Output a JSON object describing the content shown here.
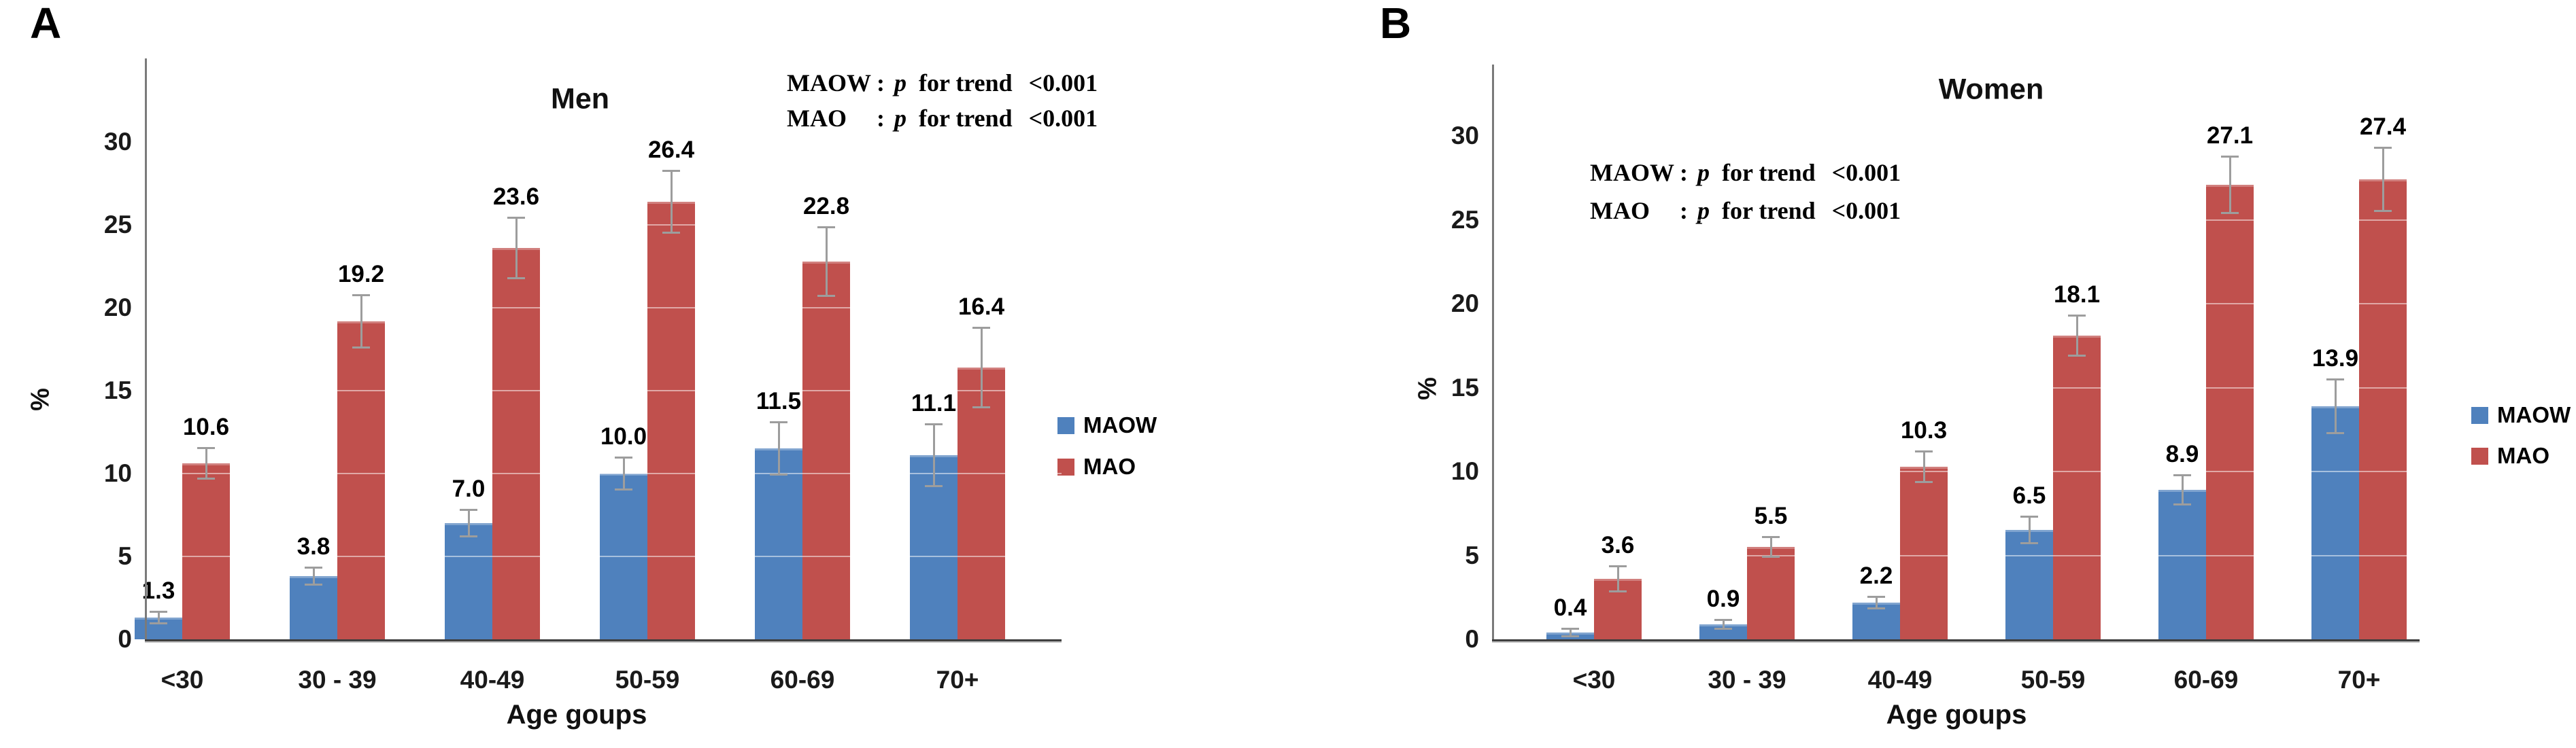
{
  "figure": {
    "background": "#ffffff",
    "error_bar_color": "#9d9d9d",
    "axis_color": "#3f3f3f"
  },
  "chart_data": [
    {
      "type": "bar",
      "panel_label": "A",
      "title": "Men",
      "ylabel": "%",
      "xlabel": "Age goups",
      "ylim": [
        0,
        35
      ],
      "yticks": [
        "0",
        "5",
        "10",
        "15",
        "20",
        "25",
        "30"
      ],
      "grid": "faint white gridlines every 5 over bars",
      "legend_position": "right",
      "categories": [
        "<30",
        "30 - 39",
        "40-49",
        "50-59",
        "60-69",
        "70+"
      ],
      "annotation": [
        {
          "name": "MAOW",
          "colon": ":",
          "p": "p",
          "text": "for trend",
          "value": "<0.001"
        },
        {
          "name": "MAO",
          "colon": ":",
          "p": "p",
          "text": "for trend",
          "value": "<0.001"
        }
      ],
      "series": [
        {
          "name": "MAOW",
          "color": "#4f81bd",
          "values": [
            1.3,
            3.8,
            7.0,
            10.0,
            11.5,
            11.1
          ],
          "labels": [
            "1.3",
            "3.8",
            "7.0",
            "10.0",
            "11.5",
            "11.1"
          ],
          "errors": [
            0.35,
            0.55,
            0.8,
            1.0,
            1.6,
            1.9
          ]
        },
        {
          "name": "MAO",
          "color": "#c0504d",
          "values": [
            10.6,
            19.2,
            23.6,
            26.4,
            22.8,
            16.4
          ],
          "labels": [
            "10.6",
            "19.2",
            "23.6",
            "26.4",
            "22.8",
            "16.4"
          ],
          "errors": [
            0.95,
            1.6,
            1.85,
            1.9,
            2.1,
            2.4
          ]
        }
      ]
    },
    {
      "type": "bar",
      "panel_label": "B",
      "title": "Women",
      "ylabel": "%",
      "xlabel": "Age goups",
      "ylim": [
        0,
        34
      ],
      "yticks": [
        "0",
        "5",
        "10",
        "15",
        "20",
        "25",
        "30"
      ],
      "grid": "faint white gridlines every 5 over bars",
      "legend_position": "right",
      "categories": [
        "<30",
        "30 - 39",
        "40-49",
        "50-59",
        "60-69",
        "70+"
      ],
      "annotation": [
        {
          "name": "MAOW",
          "colon": ":",
          "p": "p",
          "text": "for trend",
          "value": "<0.001"
        },
        {
          "name": "MAO",
          "colon": ":",
          "p": "p",
          "text": "for trend",
          "value": "<0.001"
        }
      ],
      "series": [
        {
          "name": "MAOW",
          "color": "#4f81bd",
          "values": [
            0.4,
            0.9,
            2.2,
            6.5,
            8.9,
            13.9
          ],
          "labels": [
            "0.4",
            "0.9",
            "2.2",
            "6.5",
            "8.9",
            "13.9"
          ],
          "errors": [
            0.25,
            0.3,
            0.35,
            0.8,
            0.9,
            1.6
          ]
        },
        {
          "name": "MAO",
          "color": "#c0504d",
          "values": [
            3.6,
            5.5,
            10.3,
            18.1,
            27.1,
            27.4
          ],
          "labels": [
            "3.6",
            "5.5",
            "10.3",
            "18.1",
            "27.1",
            "27.4"
          ],
          "errors": [
            0.75,
            0.6,
            0.95,
            1.2,
            1.7,
            1.9
          ]
        }
      ]
    }
  ]
}
